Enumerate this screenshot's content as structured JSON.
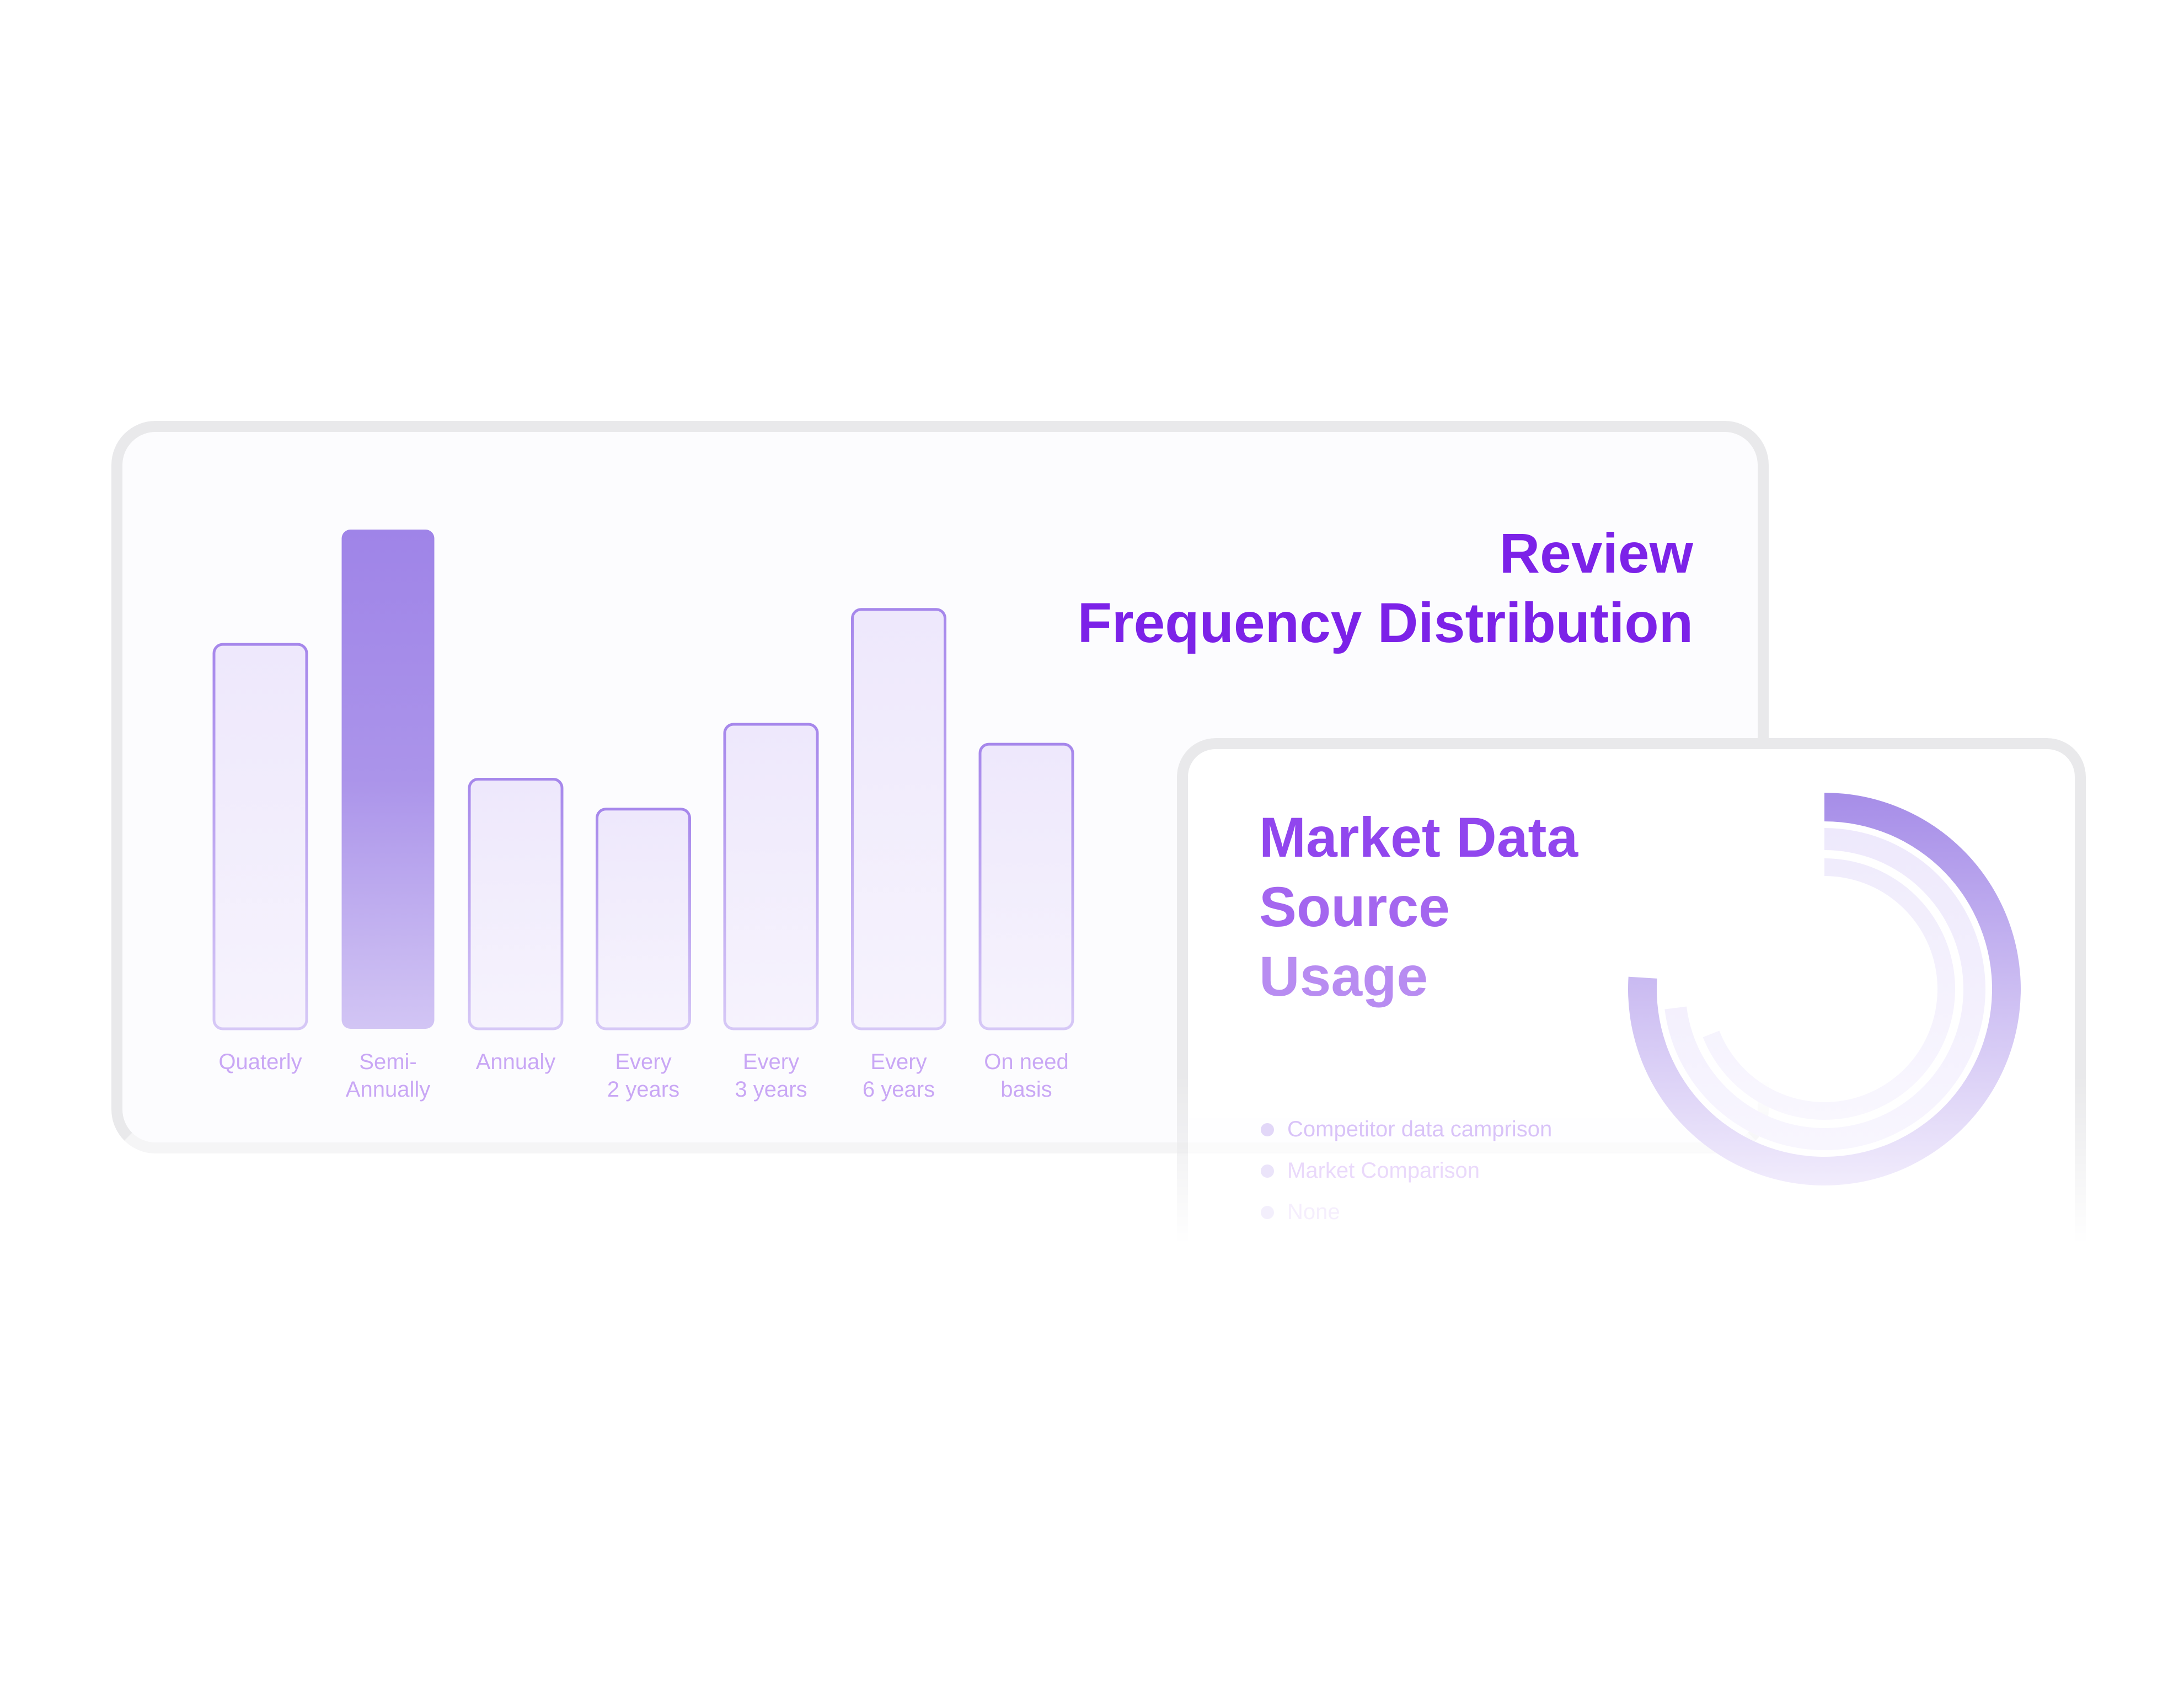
{
  "chart_data": [
    {
      "type": "bar",
      "title_lines": [
        "Review",
        "Frequency Distribution"
      ],
      "categories": [
        [
          "Quaterly"
        ],
        [
          "Semi-",
          "Annually"
        ],
        [
          "Annualy"
        ],
        [
          "Every",
          "2 years"
        ],
        [
          "Every",
          "3 years"
        ],
        [
          "Every",
          "6 years"
        ],
        [
          "On need",
          "basis"
        ]
      ],
      "values": [
        77,
        100,
        50,
        44,
        61,
        84,
        57
      ],
      "highlighted_index": 1,
      "xlabel": "",
      "ylabel": "",
      "ylim": [
        0,
        100
      ],
      "grid": false,
      "colors": {
        "title": "#7c22e8",
        "bar_stroke": "#a989ec",
        "bar_fill": "#efe9fc",
        "highlight": "#9f84e8",
        "label": "#c9a7f5"
      }
    },
    {
      "type": "pie",
      "subtype": "radial-bar",
      "title_lines": [
        "Market Data",
        "Source",
        "Usage"
      ],
      "series": [
        {
          "name": "Competitor data camprison",
          "value": 76
        },
        {
          "name": "Market Comparison",
          "value": 73
        },
        {
          "name": "None",
          "value": 69
        }
      ],
      "legend": "bottom-left",
      "colors": {
        "title_start": "#9146ee",
        "title_end": "#b88cf1",
        "ring1": "#a68de8",
        "ring2": "#eee9fc",
        "ring3": "#f2eefc"
      }
    }
  ]
}
